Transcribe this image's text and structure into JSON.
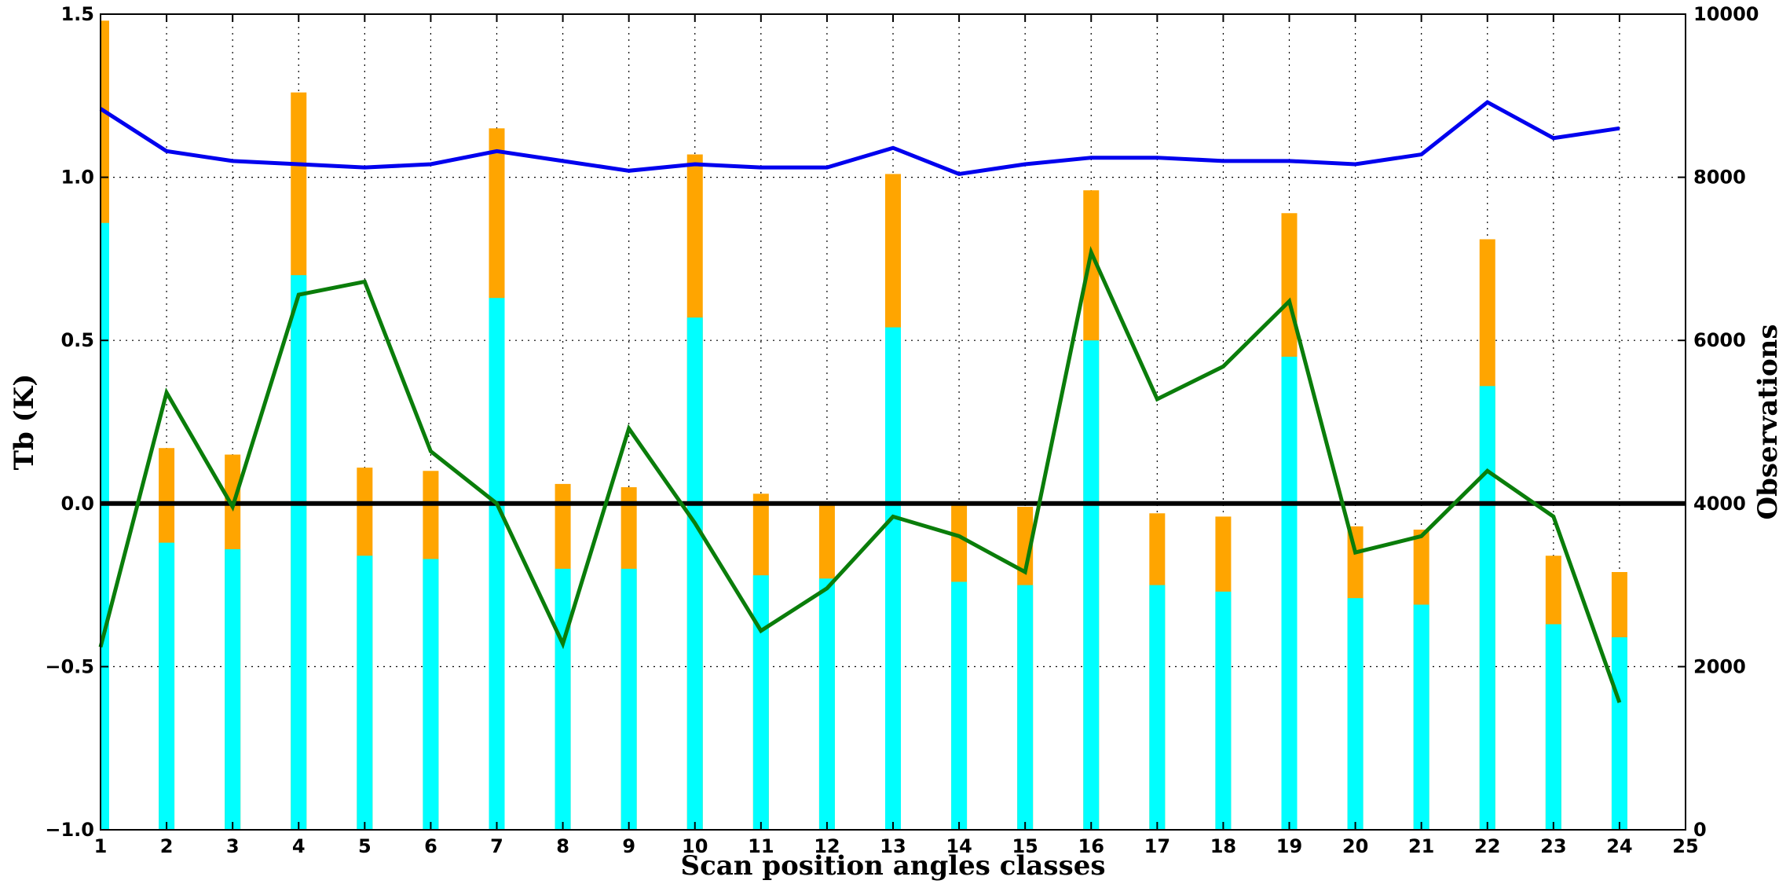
{
  "chart_data": {
    "type": "bar",
    "xlabel": "Scan position angles classes",
    "ylabel_left": "Tb (K)",
    "ylabel_right": "Observations",
    "xlim": [
      1,
      25
    ],
    "ylim_left": [
      -1.0,
      1.5
    ],
    "ylim_right": [
      0,
      10000
    ],
    "grid": true,
    "x_ticks": [
      1,
      2,
      3,
      4,
      5,
      6,
      7,
      8,
      9,
      10,
      11,
      12,
      13,
      14,
      15,
      16,
      17,
      18,
      19,
      20,
      21,
      22,
      23,
      24,
      25
    ],
    "y_left_ticks": [
      -1.0,
      -0.5,
      0.0,
      0.5,
      1.0,
      1.5
    ],
    "y_left_tick_labels": [
      "−1.0",
      "−0.5",
      "0.0",
      "0.5",
      "1.0",
      "1.5"
    ],
    "y_right_ticks": [
      0,
      2000,
      4000,
      6000,
      8000,
      10000
    ],
    "y_right_tick_labels": [
      "0",
      "2000",
      "4000",
      "6000",
      "8000",
      "10000"
    ],
    "colors": {
      "orange_bars": "#ffa500",
      "cyan_bars": "#00ffff",
      "blue_line": "#0000ee",
      "green_line": "#0a7d0a",
      "zero_line": "#000000"
    },
    "x": [
      1,
      2,
      3,
      4,
      5,
      6,
      7,
      8,
      9,
      10,
      11,
      12,
      13,
      14,
      15,
      16,
      17,
      18,
      19,
      20,
      21,
      22,
      23,
      24
    ],
    "bars_orange_tb": [
      1.48,
      0.17,
      0.15,
      1.26,
      0.11,
      0.1,
      1.15,
      0.06,
      0.05,
      1.07,
      0.03,
      0.0,
      1.01,
      0.0,
      -0.01,
      0.96,
      -0.03,
      -0.04,
      0.89,
      -0.07,
      -0.08,
      0.81,
      -0.16,
      -0.21
    ],
    "bars_cyan_tb": [
      0.86,
      -0.12,
      -0.14,
      0.7,
      -0.16,
      -0.17,
      0.63,
      -0.2,
      -0.2,
      0.57,
      -0.22,
      -0.23,
      0.54,
      -0.24,
      -0.25,
      0.5,
      -0.25,
      -0.27,
      0.45,
      -0.29,
      -0.31,
      0.36,
      -0.37,
      -0.41
    ],
    "blue_line_tb": [
      1.21,
      1.08,
      1.05,
      1.04,
      1.03,
      1.04,
      1.08,
      1.05,
      1.02,
      1.04,
      1.03,
      1.03,
      1.09,
      1.01,
      1.04,
      1.06,
      1.06,
      1.05,
      1.05,
      1.04,
      1.07,
      1.23,
      1.12,
      1.15
    ],
    "green_line_tb": [
      -0.44,
      0.34,
      -0.01,
      0.64,
      0.68,
      0.16,
      0.0,
      -0.43,
      0.23,
      -0.06,
      -0.39,
      -0.26,
      -0.04,
      -0.1,
      -0.21,
      0.77,
      0.32,
      0.42,
      0.62,
      -0.15,
      -0.1,
      0.1,
      -0.04,
      -0.61
    ]
  }
}
